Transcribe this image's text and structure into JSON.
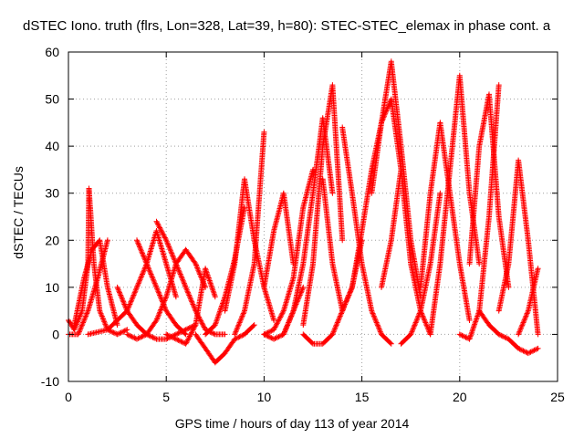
{
  "chart_data": {
    "type": "scatter",
    "title": "dSTEC Iono. truth (flrs, Lon=328, Lat=39, h=80): STEC-STEC_elemax in phase cont. a",
    "xlabel": "GPS time / hours of day 113 of year 2014",
    "ylabel": "dSTEC  / TECUs",
    "xlim": [
      0,
      25
    ],
    "ylim": [
      -10,
      60
    ],
    "xticks": [
      0,
      5,
      10,
      15,
      20,
      25
    ],
    "yticks": [
      -10,
      0,
      10,
      20,
      30,
      40,
      50,
      60
    ],
    "grid": true,
    "marker": "+",
    "color": "#ff0000",
    "series": [
      {
        "x": [
          0.0,
          0.3,
          0.7,
          1.0,
          1.05
        ],
        "y": [
          3,
          1,
          5,
          15,
          31
        ]
      },
      {
        "x": [
          1.05,
          1.3,
          1.6,
          2.0,
          2.5,
          3.0
        ],
        "y": [
          31,
          15,
          5,
          1,
          0,
          1
        ]
      },
      {
        "x": [
          0.0,
          0.5,
          1.0,
          1.5,
          2.0
        ],
        "y": [
          0,
          0,
          5,
          12,
          20
        ]
      },
      {
        "x": [
          0.3,
          0.8,
          1.2,
          1.6,
          2.0,
          2.5
        ],
        "y": [
          2,
          12,
          18,
          20,
          10,
          2
        ]
      },
      {
        "x": [
          2.5,
          3.0,
          3.5,
          4.0,
          4.5,
          5.0,
          5.5,
          6.0,
          6.5
        ],
        "y": [
          10,
          5,
          2,
          0,
          -1,
          -1,
          0,
          1,
          2
        ]
      },
      {
        "x": [
          1.0,
          2.0,
          3.0,
          3.5,
          4.0,
          4.5,
          5.0,
          5.5
        ],
        "y": [
          0,
          1,
          5,
          10,
          15,
          22,
          15,
          8
        ]
      },
      {
        "x": [
          3.5,
          4.0,
          4.5,
          5.0,
          5.5,
          6.0
        ],
        "y": [
          20,
          15,
          10,
          5,
          2,
          0
        ]
      },
      {
        "x": [
          3.0,
          3.5,
          4.0,
          4.5,
          5.0,
          5.5,
          6.0,
          6.5,
          7.0
        ],
        "y": [
          0,
          -1,
          0,
          3,
          8,
          15,
          18,
          15,
          10
        ]
      },
      {
        "x": [
          4.5,
          5.0,
          5.5,
          6.0,
          6.5,
          7.0,
          7.5,
          8.0
        ],
        "y": [
          24,
          20,
          15,
          10,
          5,
          1,
          0,
          0
        ]
      },
      {
        "x": [
          5.0,
          5.5,
          6.0,
          6.5,
          7.0,
          7.5
        ],
        "y": [
          0,
          -1,
          -2,
          2,
          14,
          8
        ]
      },
      {
        "x": [
          6.5,
          7.0,
          7.5,
          8.0,
          8.5,
          9.0,
          9.5
        ],
        "y": [
          0,
          -3,
          -6,
          -4,
          -1,
          0,
          2
        ]
      },
      {
        "x": [
          7.0,
          7.5,
          8.0,
          8.5,
          9.0
        ],
        "y": [
          0,
          2,
          8,
          16,
          27
        ]
      },
      {
        "x": [
          8.0,
          8.5,
          9.0,
          9.5,
          10.0,
          10.5
        ],
        "y": [
          5,
          15,
          33,
          20,
          10,
          3
        ]
      },
      {
        "x": [
          8.5,
          9.0,
          9.5,
          10.0
        ],
        "y": [
          0,
          5,
          15,
          43
        ]
      },
      {
        "x": [
          10.0,
          10.5,
          11.0,
          11.5,
          12.0
        ],
        "y": [
          0,
          -1,
          0,
          5,
          10
        ]
      },
      {
        "x": [
          10.0,
          10.5,
          11.0,
          11.5
        ],
        "y": [
          10,
          22,
          30,
          15
        ]
      },
      {
        "x": [
          10.0,
          10.5,
          11.0,
          11.5,
          12.0,
          12.5
        ],
        "y": [
          0,
          1,
          5,
          12,
          27,
          35
        ]
      },
      {
        "x": [
          11.0,
          11.5,
          12.0,
          12.5,
          13.0,
          13.5
        ],
        "y": [
          0,
          5,
          15,
          30,
          46,
          30
        ]
      },
      {
        "x": [
          12.0,
          12.5,
          13.0,
          13.5,
          14.0
        ],
        "y": [
          2,
          15,
          40,
          53,
          20
        ]
      },
      {
        "x": [
          13.0,
          13.5,
          14.0,
          14.5,
          15.0
        ],
        "y": [
          33,
          15,
          5,
          10,
          20
        ]
      },
      {
        "x": [
          12.0,
          12.5,
          13.0,
          13.5,
          14.0,
          14.5
        ],
        "y": [
          0,
          -2,
          -2,
          0,
          5,
          10
        ]
      },
      {
        "x": [
          14.0,
          14.5,
          15.0,
          15.5,
          16.0,
          16.5
        ],
        "y": [
          44,
          30,
          15,
          5,
          0,
          -2
        ]
      },
      {
        "x": [
          14.5,
          15.0,
          15.5,
          16.0,
          16.5,
          17.0
        ],
        "y": [
          10,
          22,
          35,
          45,
          50,
          35
        ]
      },
      {
        "x": [
          15.5,
          16.0,
          16.5,
          17.0,
          17.5,
          18.0
        ],
        "y": [
          30,
          45,
          58,
          40,
          20,
          8
        ]
      },
      {
        "x": [
          16.0,
          16.5,
          17.0,
          17.5,
          18.0,
          18.5
        ],
        "y": [
          10,
          20,
          35,
          15,
          5,
          0
        ]
      },
      {
        "x": [
          17.0,
          17.5,
          18.0,
          18.5,
          19.0
        ],
        "y": [
          -2,
          0,
          5,
          15,
          30
        ]
      },
      {
        "x": [
          18.0,
          18.5,
          19.0,
          19.5,
          20.0,
          20.5
        ],
        "y": [
          10,
          30,
          45,
          30,
          15,
          3
        ]
      },
      {
        "x": [
          18.5,
          19.0,
          19.5,
          20.0,
          20.5,
          21.0
        ],
        "y": [
          0,
          15,
          35,
          55,
          30,
          15
        ]
      },
      {
        "x": [
          20.0,
          20.5,
          21.0,
          21.5,
          22.0
        ],
        "y": [
          0,
          -1,
          5,
          25,
          53
        ]
      },
      {
        "x": [
          20.5,
          21.0,
          21.5,
          22.0,
          22.5
        ],
        "y": [
          15,
          40,
          51,
          25,
          10
        ]
      },
      {
        "x": [
          21.0,
          21.5,
          22.0,
          22.5,
          23.0,
          23.5,
          24.0
        ],
        "y": [
          5,
          2,
          0,
          -1,
          -3,
          -4,
          -3
        ]
      },
      {
        "x": [
          22.0,
          22.5,
          23.0,
          23.5,
          24.0
        ],
        "y": [
          5,
          15,
          37,
          20,
          0
        ]
      },
      {
        "x": [
          23.0,
          23.5,
          24.0
        ],
        "y": [
          0,
          5,
          14
        ]
      }
    ]
  }
}
